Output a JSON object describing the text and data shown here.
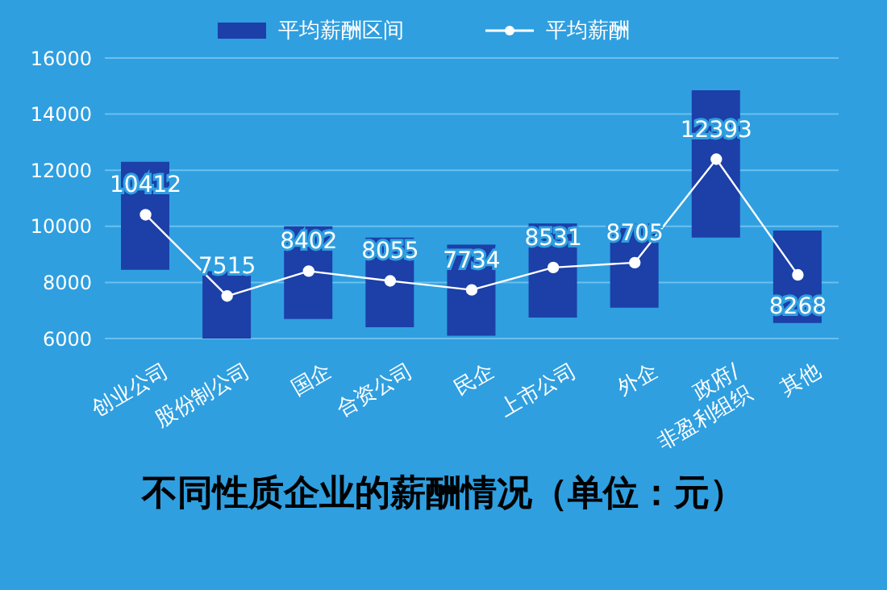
{
  "chart_data": {
    "type": "bar",
    "title": "不同性质企业的薪酬情况（单位：元）",
    "categories": [
      "创业公司",
      "股份制公司",
      "国企",
      "合资公司",
      "民企",
      "上市公司",
      "外企",
      "政府/\n非盈利组织",
      "其他"
    ],
    "series": [
      {
        "name": "平均薪酬区间",
        "color": "#1c3fa8",
        "base": [
          8450,
          6000,
          6700,
          6400,
          6100,
          6750,
          7100,
          9600,
          6550
        ],
        "values": [
          3850,
          2400,
          3300,
          3200,
          3250,
          3350,
          3000,
          5250,
          3300
        ]
      },
      {
        "name": "平均薪酬",
        "type": "line",
        "color": "#ffffff",
        "marker": "circle",
        "data_labels": true,
        "values": [
          10412,
          7515,
          8402,
          8055,
          7734,
          8531,
          8705,
          12393,
          8268
        ]
      }
    ],
    "ylim": [
      6000,
      16000
    ],
    "yticks": [
      6000,
      8000,
      10000,
      12000,
      14000,
      16000
    ],
    "grid": "y",
    "legend": "top"
  }
}
